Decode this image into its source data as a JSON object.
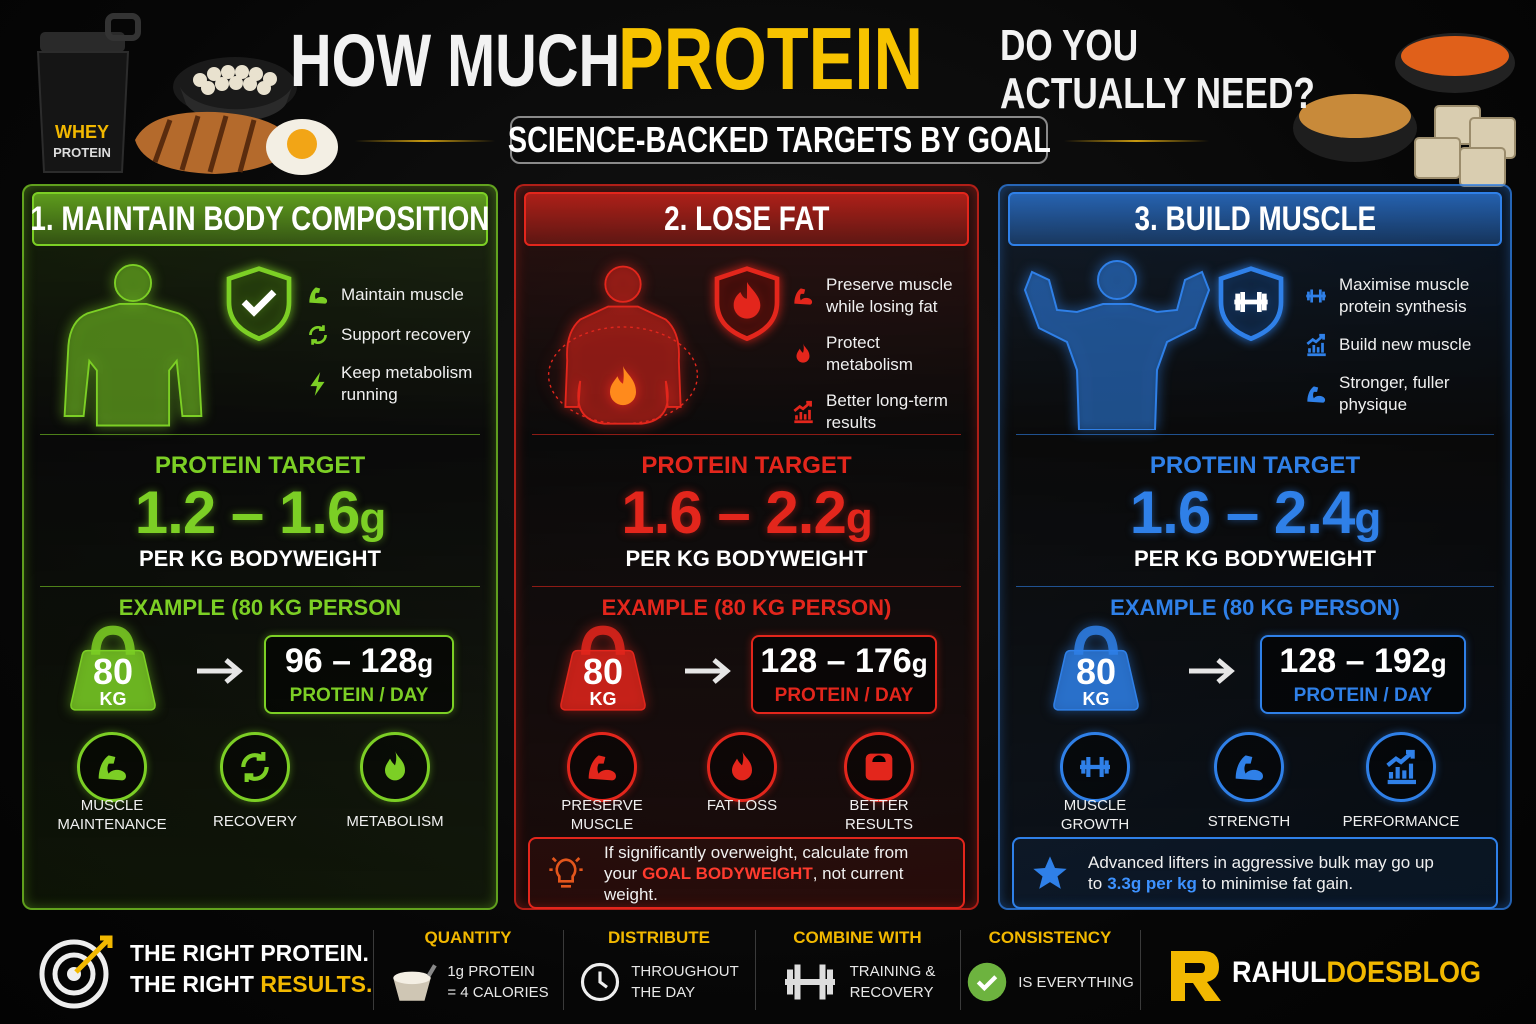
{
  "header": {
    "title_start": "HOW MUCH",
    "title_highlight": "PROTEIN",
    "title_end": [
      "DO YOU",
      "ACTUALLY NEED?"
    ],
    "subtitle": "SCIENCE-BACKED TARGETS BY GOAL",
    "shaker_label": [
      "WHEY",
      "PROTEIN"
    ]
  },
  "panels": [
    {
      "title": "1. MAINTAIN BODY COMPOSITION",
      "color": "#7ccf25",
      "benefits": [
        "Maintain muscle",
        "Support recovery",
        "Keep metabolism running"
      ],
      "target_label": "PROTEIN TARGET",
      "target_range": "1.2 – 1.6",
      "target_unit": "g",
      "per": "PER KG BODYWEIGHT",
      "example_label": "EXAMPLE (80 KG PERSON",
      "weight": "80",
      "weight_unit": "KG",
      "result_range": "96 – 128",
      "result_unit": "g",
      "result_label": "PROTEIN / DAY",
      "icons": [
        "MUSCLE MAINTENANCE",
        "RECOVERY",
        "METABOLISM"
      ]
    },
    {
      "title": "2. LOSE FAT",
      "color": "#e3261c",
      "benefits": [
        "Preserve muscle while losing fat",
        "Protect metabolism",
        "Better long-term results"
      ],
      "target_label": "PROTEIN TARGET",
      "target_range": "1.6 – 2.2",
      "target_unit": "g",
      "per": "PER KG BODYWEIGHT",
      "example_label": "EXAMPLE (80 KG PERSON)",
      "weight": "80",
      "weight_unit": "KG",
      "result_range": "128 – 176",
      "result_unit": "g",
      "result_label": "PROTEIN / DAY",
      "icons": [
        "PRESERVE MUSCLE",
        "FAT LOSS",
        "BETTER RESULTS"
      ],
      "note": [
        "If significantly overweight, calculate from your",
        "GOAL BODYWEIGHT",
        ", not current weight."
      ]
    },
    {
      "title": "3. BUILD MUSCLE",
      "color": "#2f80e8",
      "benefits": [
        "Maximise muscle protein synthesis",
        "Build new muscle",
        "Stronger, fuller physique"
      ],
      "target_label": "PROTEIN TARGET",
      "target_range": "1.6 – 2.4",
      "target_unit": "g",
      "per": "PER KG BODYWEIGHT",
      "example_label": "EXAMPLE (80 KG PERSON)",
      "weight": "80",
      "weight_unit": "KG",
      "result_range": "128 – 192",
      "result_unit": "g",
      "result_label": "PROTEIN / DAY",
      "icons": [
        "MUSCLE GROWTH",
        "STRENGTH",
        "PERFORMANCE"
      ],
      "note": [
        "Advanced lifters in aggressive bulk may go up to",
        "3.3g per kg",
        "to minimise fat gain."
      ]
    }
  ],
  "footer": {
    "slogan": [
      "THE RIGHT PROTEIN.",
      "THE RIGHT",
      "RESULTS."
    ],
    "items": [
      {
        "title": "QUANTITY",
        "text": [
          "1g PROTEIN",
          "= 4 CALORIES"
        ]
      },
      {
        "title": "DISTRIBUTE",
        "text": [
          "THROUGHOUT",
          "THE DAY"
        ]
      },
      {
        "title": "COMBINE WITH",
        "text": [
          "TRAINING &",
          "RECOVERY"
        ]
      },
      {
        "title": "CONSISTENCY",
        "text": [
          "IS EVERYTHING"
        ]
      }
    ],
    "brand": [
      "RAHUL",
      "DOESBLOG"
    ]
  }
}
